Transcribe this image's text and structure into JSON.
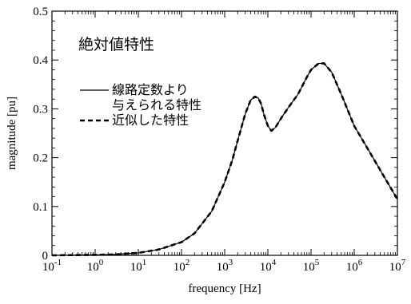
{
  "chart_data": {
    "type": "line",
    "title": "絶対値特性",
    "xlabel": "frequency [Hz]",
    "ylabel": "magnitude [pu]",
    "xscale": "log",
    "xlim": [
      0.1,
      10000000
    ],
    "ylim": [
      0,
      0.5
    ],
    "grid": false,
    "legend_position": "upper-left",
    "x_ticks": [
      {
        "base": "10",
        "exp": "-1",
        "value": 0.1
      },
      {
        "base": "10",
        "exp": "0",
        "value": 1
      },
      {
        "base": "10",
        "exp": "1",
        "value": 10
      },
      {
        "base": "10",
        "exp": "2",
        "value": 100
      },
      {
        "base": "10",
        "exp": "3",
        "value": 1000
      },
      {
        "base": "10",
        "exp": "4",
        "value": 10000
      },
      {
        "base": "10",
        "exp": "5",
        "value": 100000
      },
      {
        "base": "10",
        "exp": "6",
        "value": 1000000
      },
      {
        "base": "10",
        "exp": "7",
        "value": 10000000
      }
    ],
    "y_ticks": [
      {
        "label": "0",
        "value": 0
      },
      {
        "label": "0.1",
        "value": 0.1
      },
      {
        "label": "0.2",
        "value": 0.2
      },
      {
        "label": "0.3",
        "value": 0.3
      },
      {
        "label": "0.4",
        "value": 0.4
      },
      {
        "label": "0.5",
        "value": 0.5
      }
    ],
    "series": [
      {
        "name": [
          "線路定数より",
          "与えられる特性"
        ],
        "style": "solid",
        "color": "#000000",
        "x": [
          0.1,
          0.3,
          1,
          3,
          10,
          30,
          100,
          200,
          500,
          1000,
          1500,
          2000,
          3000,
          4000,
          5000,
          6000,
          7000,
          8000,
          10000,
          12000,
          15000,
          20000,
          30000,
          50000,
          80000,
          100000,
          150000,
          200000,
          300000,
          500000,
          1000000,
          2000000,
          5000000,
          10000000
        ],
        "y": [
          0.0,
          0.0005,
          0.001,
          0.002,
          0.005,
          0.012,
          0.027,
          0.045,
          0.09,
          0.15,
          0.195,
          0.235,
          0.29,
          0.318,
          0.325,
          0.322,
          0.31,
          0.29,
          0.265,
          0.255,
          0.262,
          0.28,
          0.303,
          0.33,
          0.365,
          0.38,
          0.393,
          0.393,
          0.375,
          0.33,
          0.265,
          0.22,
          0.16,
          0.115
        ]
      },
      {
        "name": [
          "近似した特性"
        ],
        "style": "dashed",
        "color": "#000000",
        "x": [
          0.1,
          0.3,
          1,
          3,
          10,
          30,
          100,
          200,
          500,
          1000,
          1500,
          2000,
          3000,
          4000,
          5000,
          6000,
          7000,
          8000,
          10000,
          12000,
          15000,
          20000,
          30000,
          50000,
          80000,
          100000,
          150000,
          200000,
          300000,
          500000,
          1000000,
          2000000,
          5000000,
          10000000
        ],
        "y": [
          0.0,
          0.0005,
          0.001,
          0.002,
          0.005,
          0.012,
          0.027,
          0.045,
          0.09,
          0.15,
          0.195,
          0.235,
          0.29,
          0.318,
          0.325,
          0.322,
          0.31,
          0.29,
          0.265,
          0.255,
          0.262,
          0.28,
          0.303,
          0.33,
          0.365,
          0.38,
          0.393,
          0.393,
          0.375,
          0.33,
          0.265,
          0.22,
          0.16,
          0.115
        ]
      }
    ]
  }
}
